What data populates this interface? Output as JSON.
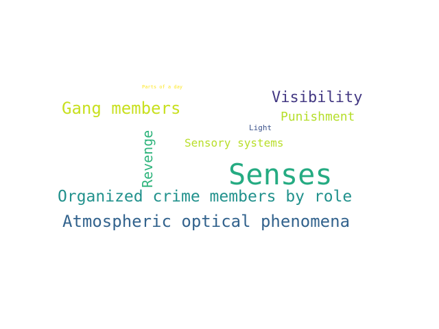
{
  "word_cloud": {
    "words": [
      {
        "id": "parts",
        "text": "Parts of a day",
        "color": "#fde725"
      },
      {
        "id": "vis",
        "text": "Visibility",
        "color": "#443983"
      },
      {
        "id": "gang",
        "text": "Gang members",
        "color": "#c8e020"
      },
      {
        "id": "pun",
        "text": "Punishment",
        "color": "#b5de2b"
      },
      {
        "id": "light",
        "text": "Light",
        "color": "#3b528b"
      },
      {
        "id": "sensory",
        "text": "Sensory systems",
        "color": "#b8de29"
      },
      {
        "id": "revenge",
        "text": "Revenge",
        "color": "#2fb47c"
      },
      {
        "id": "senses",
        "text": "Senses",
        "color": "#25ab82"
      },
      {
        "id": "org",
        "text": "Organized crime members by role",
        "color": "#21918c"
      },
      {
        "id": "atmo",
        "text": "Atmospheric optical phenomena",
        "color": "#33638d"
      }
    ]
  }
}
